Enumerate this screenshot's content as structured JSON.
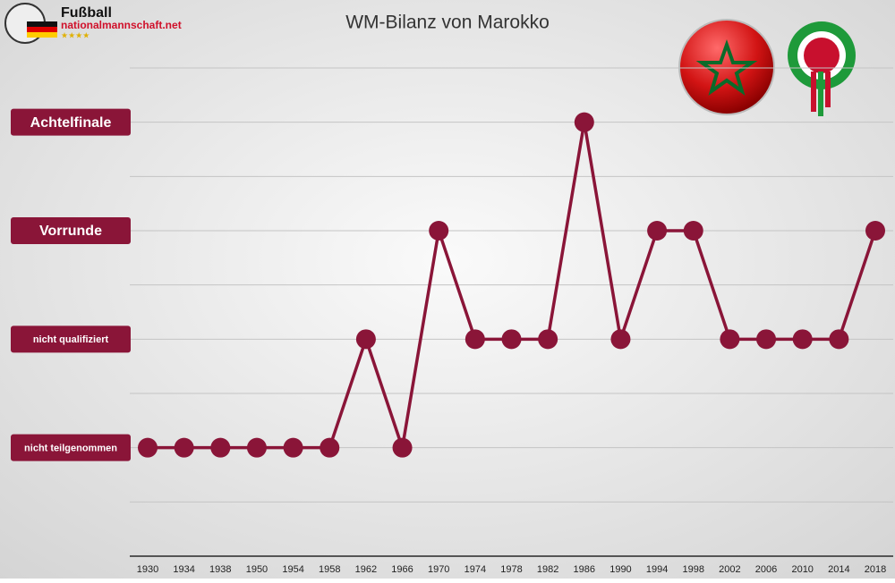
{
  "chart_data": {
    "type": "line",
    "title": "WM-Bilanz von Marokko",
    "categories": [
      "1930",
      "1934",
      "1938",
      "1950",
      "1954",
      "1958",
      "1962",
      "1966",
      "1970",
      "1974",
      "1978",
      "1982",
      "1986",
      "1990",
      "1994",
      "1998",
      "2002",
      "2006",
      "2010",
      "2014",
      "2018"
    ],
    "series": [
      {
        "color": "#8a1538",
        "values": [
          0,
          0,
          0,
          0,
          0,
          0,
          1,
          0,
          2,
          1,
          1,
          1,
          3,
          1,
          2,
          2,
          1,
          1,
          1,
          1,
          2
        ]
      }
    ],
    "ylim": [
      -1,
      3.5
    ],
    "yticks": [
      {
        "value": 0,
        "label": "nicht teilgenommen"
      },
      {
        "value": 1,
        "label": "nicht qualifiziert"
      },
      {
        "value": 2,
        "label": "Vorrunde"
      },
      {
        "value": 3,
        "label": "Achtelfinale"
      }
    ],
    "minor_yticks": [
      -0.5,
      0.5,
      1.5,
      2.5,
      3.5
    ],
    "grid": true
  },
  "logo": {
    "line1": "Fußball",
    "line2": "nationalmannschaft.net",
    "stars": "★★★★"
  }
}
